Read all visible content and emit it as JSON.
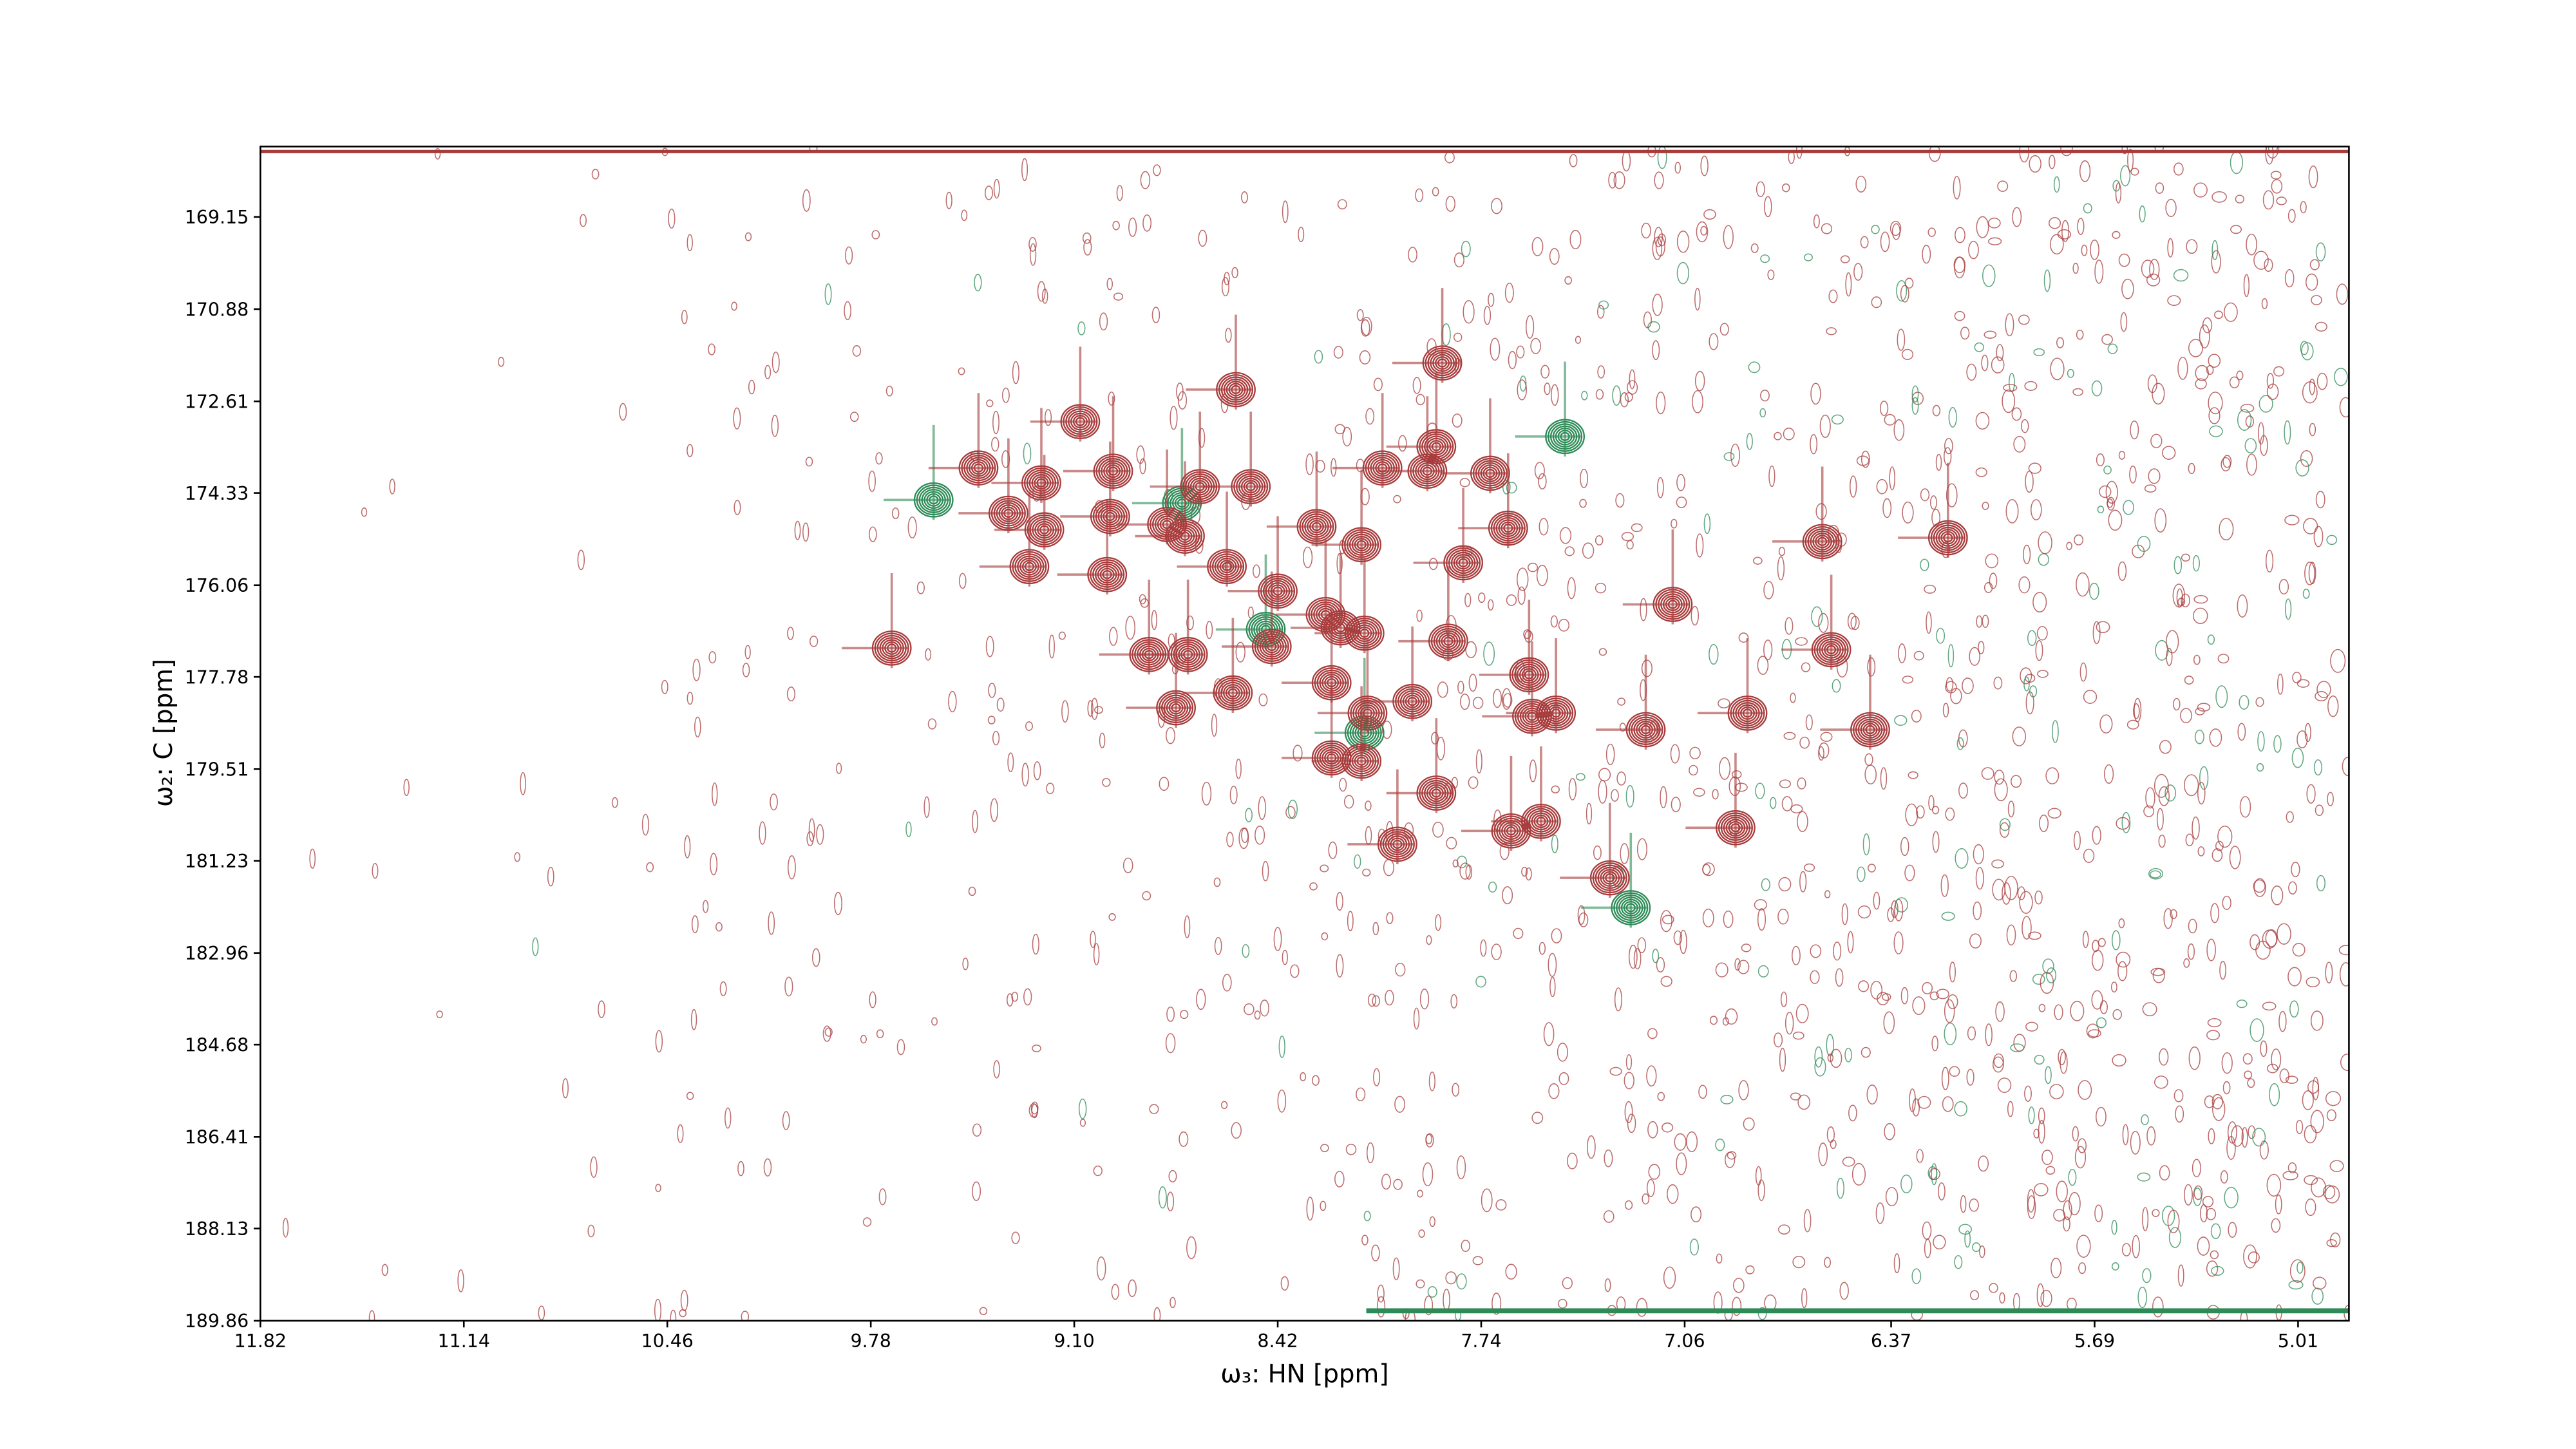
{
  "chart_data": {
    "type": "contour",
    "x_label": "ω₃: HN [ppm]",
    "y_label": "ω₂: C [ppm]",
    "xlim": [
      11.82,
      4.84
    ],
    "ylim": [
      167.83,
      189.86
    ],
    "xticks": [
      11.82,
      11.14,
      10.46,
      9.78,
      {
        "value": 9.1,
        "label": "9.10"
      },
      8.42,
      7.74,
      7.06,
      6.37,
      5.69,
      5.01
    ],
    "yticks": [
      169.15,
      170.88,
      172.61,
      174.33,
      176.06,
      177.78,
      179.51,
      181.23,
      182.96,
      184.68,
      186.41,
      188.13,
      189.86
    ],
    "series": [
      {
        "color": "#2e8b57",
        "x": [
          8.74,
          9.57,
          8.46,
          7.46,
          8.13,
          7.24
        ],
        "y": [
          174.52,
          174.46,
          176.89,
          173.27,
          178.83,
          182.11
        ]
      },
      {
        "color": "#a83c3c",
        "x": [
          9.08,
          8.56,
          7.87,
          9.42,
          9.21,
          8.97,
          9.32,
          9.2,
          8.98,
          8.68,
          8.51,
          8.29,
          8.14,
          8.07,
          7.92,
          7.71,
          7.65,
          7.8,
          7.89,
          9.25,
          8.99,
          8.79,
          8.73,
          8.59,
          8.42,
          8.26,
          8.21,
          8.72,
          8.85,
          8.44,
          8.13,
          7.85,
          7.58,
          7.1,
          6.57,
          9.71,
          8.76,
          8.57,
          8.24,
          8.12,
          7.97,
          7.57,
          7.49,
          7.19,
          6.85,
          6.44,
          8.24,
          8.14,
          7.89,
          7.64,
          7.54,
          6.89,
          8.02,
          7.31,
          6.6,
          6.18
        ],
        "y": [
          172.99,
          172.39,
          171.89,
          173.86,
          174.14,
          173.92,
          174.71,
          175.02,
          174.77,
          174.21,
          174.21,
          174.96,
          175.3,
          173.86,
          173.92,
          173.96,
          174.99,
          175.64,
          173.46,
          175.71,
          175.86,
          174.92,
          175.14,
          175.71,
          176.17,
          176.61,
          176.86,
          177.36,
          177.36,
          177.21,
          176.96,
          177.11,
          177.74,
          176.42,
          177.27,
          177.24,
          178.36,
          178.08,
          177.89,
          178.46,
          178.24,
          178.52,
          178.46,
          178.77,
          178.46,
          178.77,
          179.3,
          179.36,
          179.96,
          180.67,
          180.49,
          180.61,
          180.92,
          181.55,
          175.24,
          175.17
        ]
      }
    ]
  }
}
